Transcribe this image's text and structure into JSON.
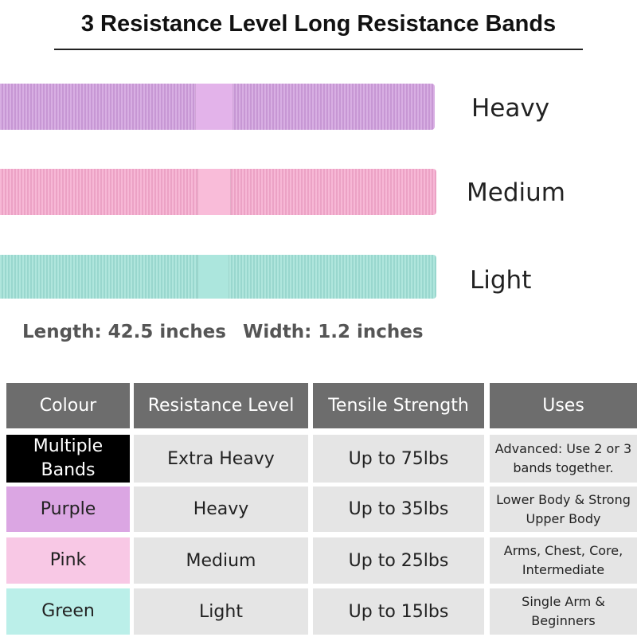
{
  "header": {
    "title": "3 Resistance Level Long Resistance Bands"
  },
  "bands": [
    {
      "label": "Heavy"
    },
    {
      "label": "Medium"
    },
    {
      "label": "Light"
    }
  ],
  "dimensions": [
    "Length: 42.5 inches",
    "Width: 1.2 inches"
  ],
  "table": {
    "columns": [
      "Colour",
      "Resistance Level",
      "Tensile Strength",
      "Uses"
    ],
    "rows": [
      [
        "Multiple Bands",
        "Extra Heavy",
        "Up to 75lbs",
        "Advanced: Use 2 or 3 bands together."
      ],
      [
        "Purple",
        "Heavy",
        "Up to 35lbs",
        "Lower Body & Strong Upper Body"
      ],
      [
        "Pink",
        "Medium",
        "Up to 25lbs",
        "Arms, Chest, Core, Intermediate"
      ],
      [
        "Green",
        "Light",
        "Up to 15lbs",
        "Single Arm & Beginners"
      ]
    ]
  }
}
